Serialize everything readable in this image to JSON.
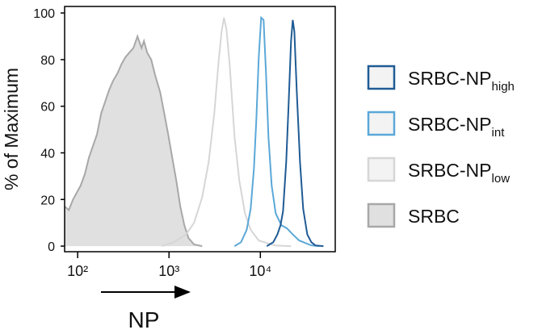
{
  "chart_data": {
    "type": "line",
    "x_label": "NP",
    "y_label": "% of Maximum",
    "xscale": "log",
    "xlim": [
      72,
      66000
    ],
    "ylim": [
      -2.4,
      102.8
    ],
    "xticks": [
      {
        "value": 100,
        "label": "10²"
      },
      {
        "value": 1000,
        "label": "10³"
      },
      {
        "value": 10000,
        "label": "10⁴"
      }
    ],
    "yticks": [
      0,
      20,
      40,
      60,
      80,
      100
    ],
    "series": [
      {
        "name": "SRBC-NP",
        "subscript": "high",
        "color": "#1f5b94",
        "x": [
          11770,
          13860,
          15350,
          16640,
          17700,
          19190,
          20400,
          21680,
          22600,
          23550,
          25000,
          27160,
          29440,
          32600,
          36100,
          40000,
          48980
        ],
        "values": [
          0,
          1.7,
          5,
          9,
          15,
          36,
          61,
          88,
          97,
          92,
          67,
          36,
          16,
          5,
          1.7,
          0.3,
          0
        ]
      },
      {
        "name": "SRBC-NP",
        "subscript": "int",
        "color": "#5ba8d8",
        "x": [
          5210,
          6140,
          7080,
          7830,
          8500,
          9030,
          9600,
          10200,
          10850,
          11530,
          12250,
          13290,
          14720,
          16990,
          19590,
          22600,
          26600,
          36100,
          44300
        ],
        "values": [
          0,
          1.7,
          7,
          16,
          33,
          54,
          81,
          98,
          97,
          74,
          47,
          26,
          14,
          9,
          7.6,
          5,
          2.4,
          0.3,
          0
        ]
      },
      {
        "name": "SRBC-NP",
        "subscript": "low",
        "color": "#d6d6d6",
        "x": [
          832,
          1130,
          1535,
          1880,
          2306,
          2714,
          3131,
          3467,
          3762,
          4000,
          4250,
          4610,
          5210,
          5890,
          6790,
          7830,
          9600,
          14420,
          21680
        ],
        "values": [
          0,
          1.7,
          5,
          10,
          21,
          36,
          57,
          78,
          92,
          98,
          93,
          78,
          47,
          28,
          14,
          7,
          2.4,
          0.3,
          0
        ]
      },
      {
        "name": "SRBC",
        "color": "#a8a8a8",
        "fill": "#e0e0e0",
        "x": [
          72,
          80,
          89,
          98,
          108,
          120,
          133,
          147,
          163,
          181,
          200,
          221,
          245,
          272,
          301,
          333,
          368,
          408,
          452,
          500,
          532,
          577,
          639,
          708,
          800,
          886,
          980,
          1085,
          1202,
          1330,
          1472,
          1631,
          1880,
          2306
        ],
        "values": [
          17,
          15.5,
          20,
          23,
          26,
          31,
          38,
          43,
          48,
          57,
          62,
          67,
          71,
          74,
          78,
          81,
          83,
          85,
          90,
          85,
          88,
          83,
          80,
          73,
          66,
          57,
          48,
          38,
          28,
          17,
          9,
          3.5,
          0.7,
          0
        ]
      }
    ]
  }
}
